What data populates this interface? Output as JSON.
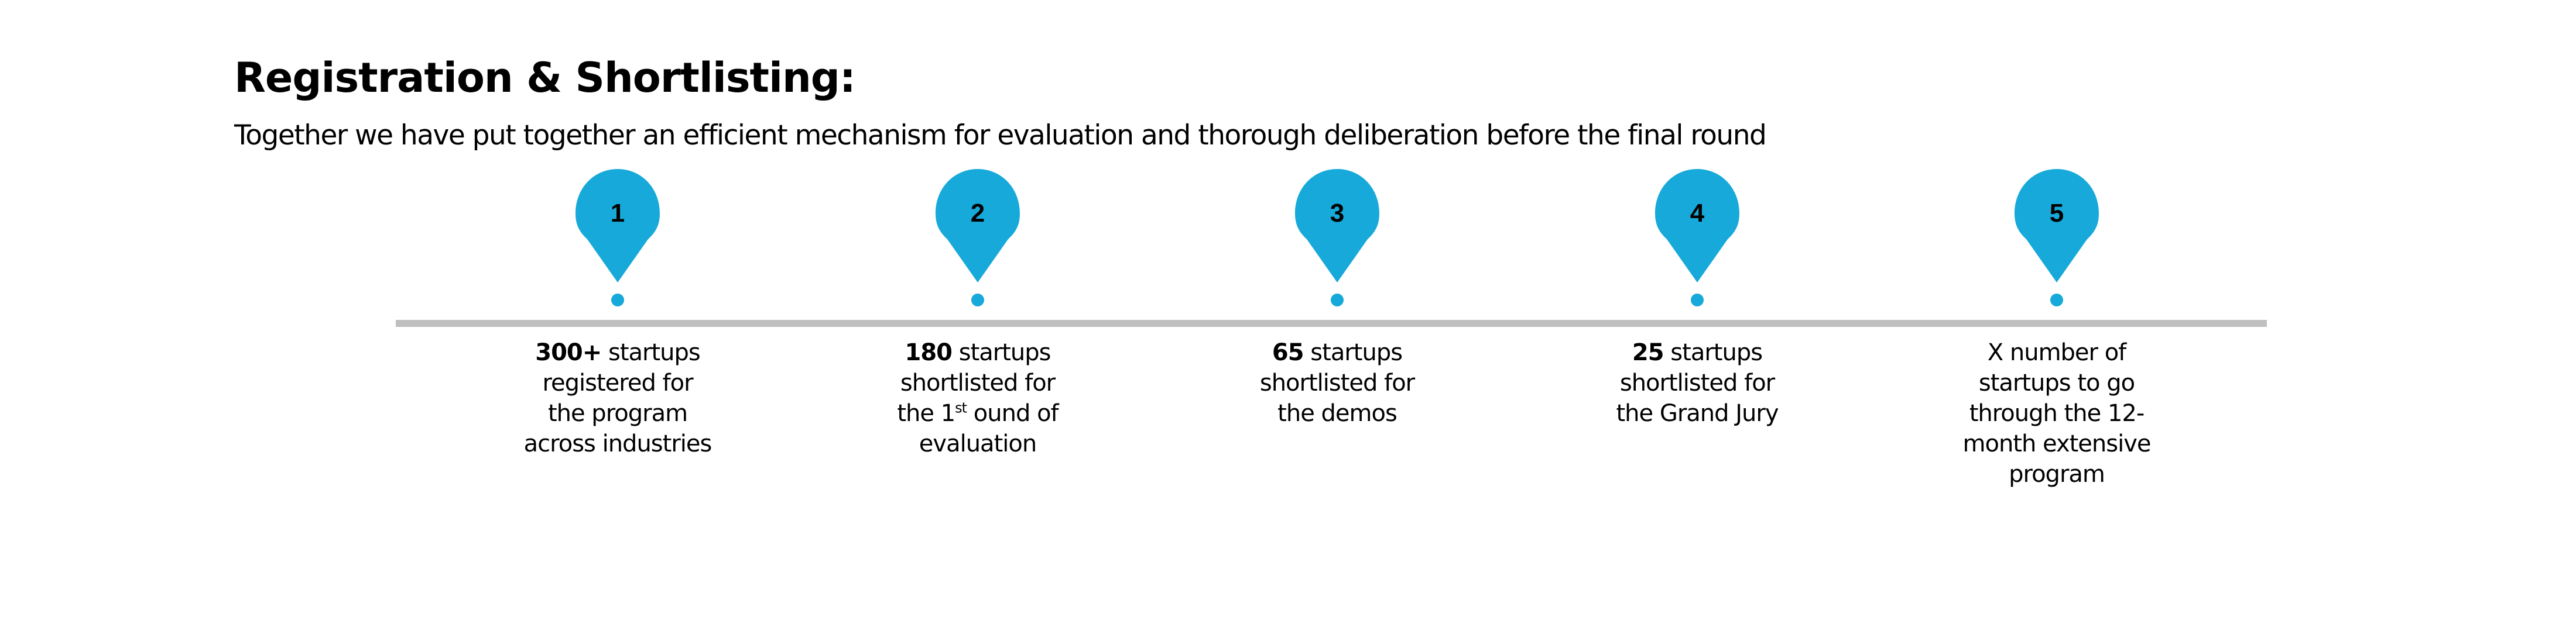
{
  "header": {
    "title": "Registration & Shortlisting:",
    "subtitle": "Together we have put together an efficient mechanism for evaluation and thorough deliberation before the final round"
  },
  "colors": {
    "accent": "#17a9d9",
    "timeline": "#bfbfbf"
  },
  "steps": [
    {
      "number": "1",
      "bold": "300+",
      "lines": [
        " startups",
        "registered for",
        "the program",
        "across industries"
      ]
    },
    {
      "number": "2",
      "bold": "180",
      "lines": [
        " startups",
        "shortlisted for",
        "the 1",
        "st",
        " ound of",
        "evaluation"
      ]
    },
    {
      "number": "3",
      "bold": "65",
      "lines": [
        " startups",
        "shortlisted for",
        "the demos"
      ]
    },
    {
      "number": "4",
      "bold": "25",
      "lines": [
        " startups",
        "shortlisted for",
        "the Grand Jury"
      ]
    },
    {
      "number": "5",
      "bold": "",
      "lines": [
        "X number of",
        "startups to go",
        "through the 12-",
        "month extensive",
        "program"
      ]
    }
  ]
}
